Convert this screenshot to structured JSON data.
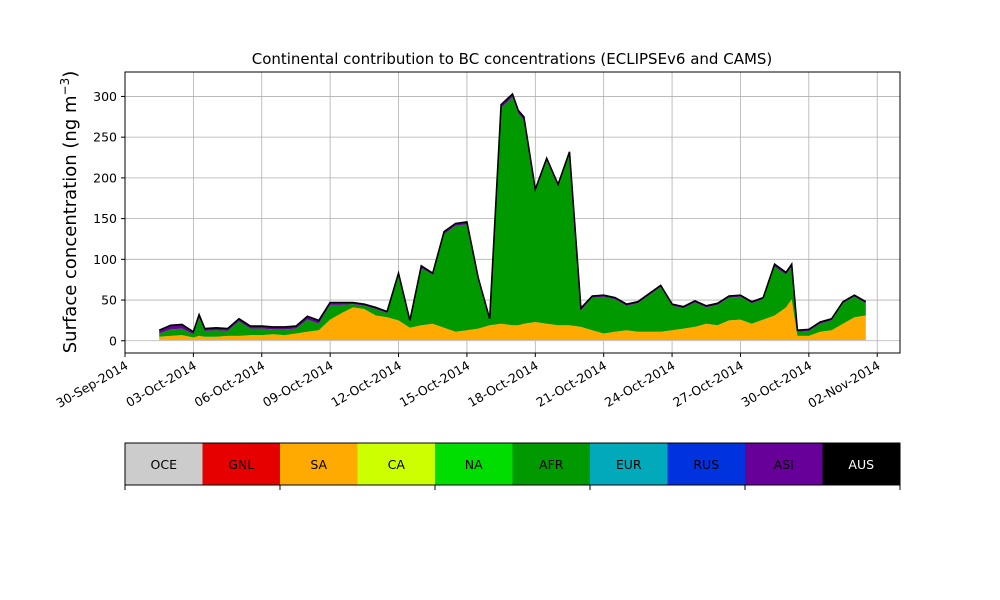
{
  "chart_data": {
    "type": "area",
    "stacked": true,
    "title": "Continental contribution to BC concentrations (ECLIPSEv6 and CAMS)",
    "ylabel": "Surface concentration (ng m",
    "ylabel_sup": "−3",
    "ylabel_close": ")",
    "xlim": [
      "2014-09-30",
      "2014-11-03"
    ],
    "ylim": [
      -15,
      330
    ],
    "grid": true,
    "y_ticks": [
      0,
      50,
      100,
      150,
      200,
      250,
      300
    ],
    "x_ticks": [
      {
        "date": "2014-09-30",
        "label": "30-Sep-2014"
      },
      {
        "date": "2014-10-03",
        "label": "03-Oct-2014"
      },
      {
        "date": "2014-10-06",
        "label": "06-Oct-2014"
      },
      {
        "date": "2014-10-09",
        "label": "09-Oct-2014"
      },
      {
        "date": "2014-10-12",
        "label": "12-Oct-2014"
      },
      {
        "date": "2014-10-15",
        "label": "15-Oct-2014"
      },
      {
        "date": "2014-10-18",
        "label": "18-Oct-2014"
      },
      {
        "date": "2014-10-21",
        "label": "21-Oct-2014"
      },
      {
        "date": "2014-10-24",
        "label": "24-Oct-2014"
      },
      {
        "date": "2014-10-27",
        "label": "27-Oct-2014"
      },
      {
        "date": "2014-10-30",
        "label": "30-Oct-2014"
      },
      {
        "date": "2014-11-02",
        "label": "02-Nov-2014"
      }
    ],
    "x": [
      "2014-10-01T12:00",
      "2014-10-02",
      "2014-10-02T12:00",
      "2014-10-03",
      "2014-10-03T06:00",
      "2014-10-03T12:00",
      "2014-10-04",
      "2014-10-04T12:00",
      "2014-10-05",
      "2014-10-05T12:00",
      "2014-10-06",
      "2014-10-06T12:00",
      "2014-10-07",
      "2014-10-07T12:00",
      "2014-10-08",
      "2014-10-08T12:00",
      "2014-10-09",
      "2014-10-09T12:00",
      "2014-10-10",
      "2014-10-10T12:00",
      "2014-10-11",
      "2014-10-11T12:00",
      "2014-10-12",
      "2014-10-12T12:00",
      "2014-10-13",
      "2014-10-13T12:00",
      "2014-10-14",
      "2014-10-14T12:00",
      "2014-10-15",
      "2014-10-15T12:00",
      "2014-10-16",
      "2014-10-16T12:00",
      "2014-10-17",
      "2014-10-17T06:00",
      "2014-10-17T12:00",
      "2014-10-18",
      "2014-10-18T12:00",
      "2014-10-19",
      "2014-10-19T12:00",
      "2014-10-20",
      "2014-10-20T12:00",
      "2014-10-21",
      "2014-10-21T12:00",
      "2014-10-22",
      "2014-10-22T12:00",
      "2014-10-23",
      "2014-10-23T12:00",
      "2014-10-24",
      "2014-10-24T12:00",
      "2014-10-25",
      "2014-10-25T12:00",
      "2014-10-26",
      "2014-10-26T12:00",
      "2014-10-27",
      "2014-10-27T12:00",
      "2014-10-28",
      "2014-10-28T12:00",
      "2014-10-29",
      "2014-10-29T06:00",
      "2014-10-29T12:00",
      "2014-10-30",
      "2014-10-30T12:00",
      "2014-10-31",
      "2014-10-31T12:00",
      "2014-11-01",
      "2014-11-01T12:00"
    ],
    "series": [
      {
        "name": "OCE",
        "color": "#cccccc",
        "values": [
          1,
          1,
          1,
          1,
          1,
          1,
          1,
          1,
          1,
          1,
          1,
          1,
          1,
          1,
          1,
          1,
          1,
          1,
          1,
          1,
          1,
          1,
          1,
          1,
          1,
          1,
          1,
          1,
          1,
          1,
          1,
          1,
          1,
          1,
          1,
          1,
          1,
          1,
          1,
          1,
          1,
          1,
          1,
          1,
          1,
          1,
          1,
          1,
          1,
          1,
          1,
          1,
          1,
          1,
          1,
          1,
          1,
          1,
          1,
          1,
          1,
          1,
          1,
          1,
          1,
          1
        ]
      },
      {
        "name": "GNL",
        "color": "#e60000",
        "values": [
          0,
          0,
          0,
          0,
          0,
          0,
          0,
          0,
          0,
          0,
          0,
          0,
          0,
          0,
          0,
          0,
          0,
          0,
          0,
          0,
          0,
          0,
          0,
          0,
          0,
          0,
          0,
          0,
          0,
          0,
          0,
          0,
          0,
          0,
          0,
          0,
          0,
          0,
          0,
          0,
          0,
          0,
          0,
          0,
          0,
          0,
          0,
          0,
          0,
          0,
          0,
          0,
          0,
          0,
          0,
          0,
          0,
          0,
          0,
          0,
          0,
          0,
          0,
          0,
          0,
          0
        ]
      },
      {
        "name": "SA",
        "color": "#ffaa00",
        "values": [
          4,
          5,
          6,
          3,
          5,
          4,
          4,
          5,
          5,
          6,
          6,
          7,
          6,
          8,
          10,
          12,
          25,
          33,
          40,
          38,
          30,
          28,
          24,
          15,
          18,
          20,
          15,
          10,
          12,
          14,
          18,
          20,
          18,
          18,
          20,
          22,
          20,
          18,
          18,
          16,
          12,
          8,
          10,
          12,
          10,
          10,
          10,
          12,
          14,
          16,
          20,
          18,
          24,
          25,
          20,
          25,
          30,
          40,
          50,
          5,
          5,
          10,
          12,
          20,
          28,
          30
        ]
      },
      {
        "name": "CA",
        "color": "#ccff00",
        "values": [
          0,
          0,
          0,
          0,
          0,
          0,
          0,
          0,
          0,
          0,
          0,
          0,
          0,
          0,
          0,
          0,
          0,
          0,
          0,
          0,
          0,
          0,
          0,
          0,
          0,
          0,
          0,
          0,
          0,
          0,
          0,
          0,
          0,
          0,
          0,
          0,
          0,
          0,
          0,
          0,
          0,
          0,
          0,
          0,
          0,
          0,
          0,
          0,
          0,
          0,
          0,
          0,
          0,
          0,
          0,
          0,
          0,
          0,
          0,
          0,
          0,
          0,
          0,
          0,
          0,
          0
        ]
      },
      {
        "name": "NA",
        "color": "#00dd00",
        "values": [
          0,
          0,
          0,
          0,
          0,
          0,
          0,
          0,
          0,
          0,
          0,
          0,
          0,
          0,
          0,
          0,
          0,
          0,
          0,
          0,
          0,
          0,
          0,
          0,
          0,
          0,
          0,
          0,
          0,
          0,
          0,
          0,
          0,
          0,
          0,
          0,
          0,
          0,
          0,
          0,
          0,
          0,
          0,
          0,
          0,
          0,
          0,
          0,
          0,
          0,
          0,
          0,
          0,
          0,
          0,
          0,
          0,
          0,
          0,
          0,
          0,
          0,
          0,
          0,
          0,
          0
        ]
      },
      {
        "name": "AFR",
        "color": "#009900",
        "values": [
          4,
          8,
          8,
          4,
          22,
          7,
          8,
          6,
          18,
          8,
          8,
          6,
          7,
          6,
          15,
          8,
          18,
          10,
          4,
          4,
          8,
          5,
          55,
          7,
          70,
          60,
          115,
          130,
          130,
          60,
          6,
          265,
          280,
          260,
          250,
          160,
          200,
          170,
          210,
          20,
          40,
          45,
          40,
          30,
          35,
          45,
          55,
          30,
          25,
          30,
          20,
          25,
          28,
          28,
          25,
          25,
          60,
          40,
          40,
          5,
          6,
          10,
          12,
          25,
          25,
          15
        ]
      },
      {
        "name": "EUR",
        "color": "#00aabb",
        "values": [
          0,
          0,
          0,
          0,
          0,
          0,
          0,
          0,
          0,
          0,
          0,
          0,
          0,
          0,
          0,
          0,
          0,
          0,
          0,
          0,
          0,
          0,
          0,
          0,
          0,
          0,
          0,
          0,
          0,
          0,
          0,
          0,
          0,
          0,
          0,
          0,
          0,
          0,
          0,
          0,
          0,
          0,
          0,
          0,
          0,
          0,
          0,
          0,
          0,
          0,
          0,
          0,
          0,
          0,
          0,
          0,
          0,
          0,
          0,
          0,
          0,
          0,
          0,
          0,
          0,
          0
        ]
      },
      {
        "name": "RUS",
        "color": "#0033dd",
        "values": [
          0,
          0,
          0,
          0,
          0,
          0,
          0,
          0,
          0,
          0,
          0,
          0,
          0,
          0,
          0,
          0,
          0,
          0,
          0,
          0,
          0,
          0,
          0,
          0,
          0,
          0,
          0,
          0,
          0,
          0,
          0,
          0,
          0,
          0,
          0,
          0,
          0,
          0,
          0,
          0,
          0,
          0,
          0,
          0,
          0,
          0,
          0,
          0,
          0,
          0,
          0,
          0,
          0,
          0,
          0,
          0,
          0,
          0,
          0,
          0,
          0,
          0,
          0,
          0,
          0,
          0
        ]
      },
      {
        "name": "ASI",
        "color": "#660099",
        "values": [
          4,
          5,
          5,
          3,
          4,
          3,
          3,
          3,
          3,
          3,
          3,
          3,
          3,
          3,
          4,
          4,
          3,
          3,
          2,
          2,
          2,
          2,
          3,
          2,
          3,
          2,
          3,
          3,
          3,
          2,
          2,
          4,
          4,
          4,
          4,
          3,
          3,
          3,
          3,
          3,
          2,
          2,
          2,
          2,
          2,
          2,
          2,
          2,
          2,
          2,
          2,
          2,
          2,
          2,
          2,
          2,
          3,
          3,
          3,
          2,
          2,
          2,
          2,
          2,
          2,
          2
        ]
      },
      {
        "name": "AUS",
        "color": "#000000",
        "values": [
          0,
          0,
          0,
          0,
          0,
          0,
          0,
          0,
          0,
          0,
          0,
          0,
          0,
          0,
          0,
          0,
          0,
          0,
          0,
          0,
          0,
          0,
          0,
          0,
          0,
          0,
          0,
          0,
          0,
          0,
          0,
          0,
          0,
          0,
          0,
          0,
          0,
          0,
          0,
          0,
          0,
          0,
          0,
          0,
          0,
          0,
          0,
          0,
          0,
          0,
          0,
          0,
          0,
          0,
          0,
          0,
          0,
          0,
          0,
          0,
          0,
          0,
          0,
          0,
          0,
          0
        ]
      }
    ]
  }
}
